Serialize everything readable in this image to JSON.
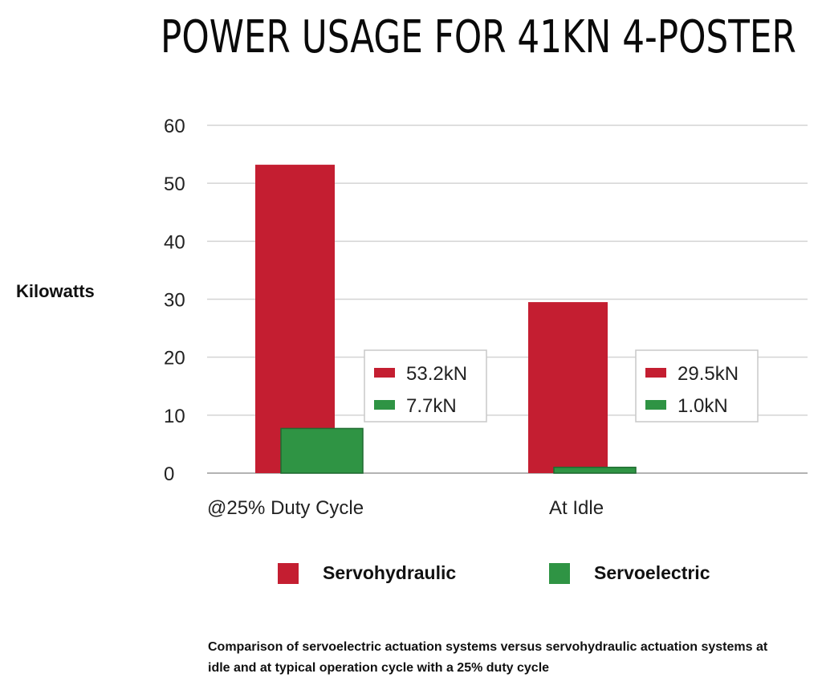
{
  "chart_data": {
    "type": "bar",
    "title": "POWER USAGE FOR 41KN 4-POSTER",
    "ylabel": "Kilowatts",
    "xlabel": "",
    "ylim": [
      0,
      60
    ],
    "yticks": [
      0,
      10,
      20,
      30,
      40,
      50,
      60
    ],
    "grid": true,
    "categories": [
      "@25% Duty Cycle",
      "At Idle"
    ],
    "series": [
      {
        "name": "Servohydraulic",
        "color": "#c41e31",
        "values": [
          53.2,
          29.5
        ]
      },
      {
        "name": "Servoelectric",
        "color": "#2f9444",
        "values": [
          7.7,
          1.0
        ]
      }
    ],
    "annotations": [
      {
        "category": "@25% Duty Cycle",
        "entries": [
          "53.2kN",
          "7.7kN"
        ]
      },
      {
        "category": "At Idle",
        "entries": [
          "29.5kN",
          "1.0kN"
        ]
      }
    ],
    "legend_placement": "bottom"
  },
  "caption": "Comparison of servoelectric actuation systems versus servohydraulic actuation systems at idle and at typical operation cycle with a 25% duty cycle"
}
